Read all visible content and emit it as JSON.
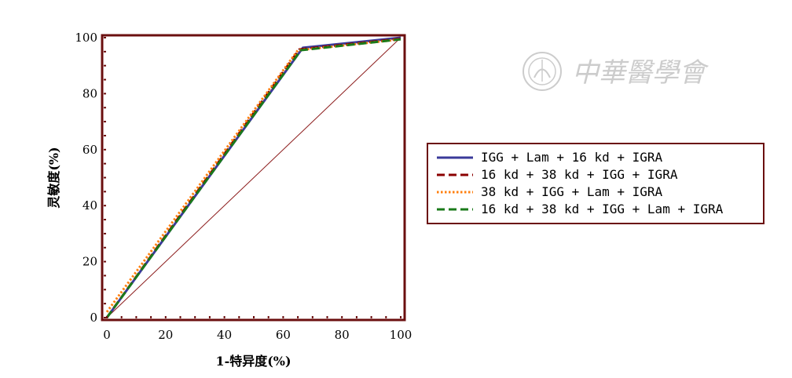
{
  "chart_data": {
    "type": "line",
    "title": "",
    "xlabel": "1-特异度(%)",
    "ylabel": "灵敏度(%)",
    "xlim": [
      0,
      100
    ],
    "ylim": [
      0,
      100
    ],
    "xticks": [
      "0",
      "20",
      "40",
      "60",
      "80",
      "100"
    ],
    "yticks": [
      "0",
      "20",
      "40",
      "60",
      "80",
      "100"
    ],
    "grid": false,
    "legend_position": "right",
    "reference_line": {
      "x": [
        0,
        100
      ],
      "y": [
        0,
        100
      ],
      "color": "#8b1a1a"
    },
    "series": [
      {
        "name": "IGG + Lam + 16 kd + IGRA",
        "color": "#3a3a9a",
        "style": "solid",
        "x": [
          0,
          66.7,
          100
        ],
        "y": [
          0,
          96.4,
          100
        ]
      },
      {
        "name": "16 kd + 38 kd + IGG + IGRA",
        "color": "#8b0000",
        "style": "dashed",
        "x": [
          0,
          65.5,
          100
        ],
        "y": [
          0,
          95.8,
          99.6
        ]
      },
      {
        "name": "38 kd + IGG + Lam + IGRA",
        "color": "#ff7f0e",
        "style": "dotted",
        "x": [
          0,
          65.0,
          100
        ],
        "y": [
          2,
          95.5,
          99.4
        ]
      },
      {
        "name": "16 kd + 38 kd + IGG + Lam + IGRA",
        "color": "#1a7a1a",
        "style": "dashed",
        "x": [
          0,
          66.0,
          100
        ],
        "y": [
          0,
          95.5,
          99.4
        ]
      }
    ]
  },
  "colors": {
    "frame": "#6b0f0f",
    "watermark": "#cccccc"
  },
  "watermark": {
    "icon": "society-seal-icon",
    "text": "中華醫學會"
  }
}
